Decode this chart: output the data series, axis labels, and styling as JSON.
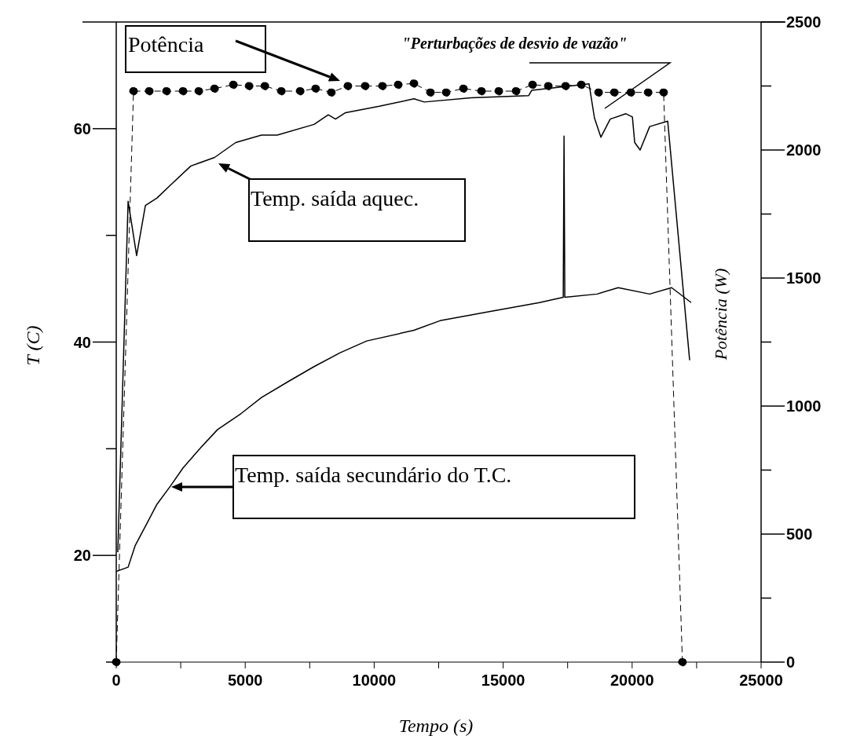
{
  "chart_data": {
    "type": "line",
    "xlabel": "Tempo (s)",
    "ylabel": "T (C)",
    "y2label": "Potência (W)",
    "xlim": [
      0,
      25000
    ],
    "xticks": [
      0,
      {
        "value": 2500,
        "label": null
      },
      5000,
      {
        "value": 7500,
        "label": null
      },
      10000,
      {
        "value": 12500,
        "label": null
      },
      15000,
      {
        "value": 17500,
        "label": null
      },
      20000,
      {
        "value": 22500,
        "label": null
      },
      25000
    ],
    "ylim": [
      10,
      70
    ],
    "yticks": [
      {
        "value": 10,
        "label": null
      },
      20,
      {
        "value": 30,
        "label": null
      },
      40,
      {
        "value": 50,
        "label": null
      },
      60
    ],
    "y2lim": [
      0,
      2500
    ],
    "y2ticks": [
      0,
      {
        "value": 250,
        "label": null
      },
      500,
      {
        "value": 750,
        "label": null
      },
      1000,
      {
        "value": 1250,
        "label": null
      },
      1500,
      {
        "value": 1750,
        "label": null
      },
      2000,
      {
        "value": 2250,
        "label": null
      },
      2500
    ],
    "annotations": [
      "Potência",
      "Temp. saída aquec.",
      "Temp. saída secundário do T.C.",
      "\"Perturbações de desvio de vazão\""
    ],
    "series": [
      {
        "color": "#000000",
        "marker": "none",
        "line_style": "solid",
        "x": [
          60,
          460,
          790,
          1130,
          1580,
          2100,
          2890,
          3810,
          4630,
          5630,
          6240,
          7670,
          8220,
          8500,
          8890,
          10200,
          11540,
          11940,
          13760,
          15990,
          16110,
          18330,
          18540,
          18790,
          19150,
          19760,
          20010,
          20100,
          20310,
          20680,
          21380,
          22230
        ],
        "values": [
          20.3,
          53.2,
          48.1,
          52.8,
          53.5,
          54.7,
          56.5,
          57.3,
          58.7,
          59.4,
          59.4,
          60.4,
          61.3,
          60.9,
          61.5,
          62.1,
          62.8,
          62.5,
          62.9,
          63.1,
          63.6,
          64.2,
          61.0,
          59.2,
          60.9,
          61.4,
          61.1,
          58.7,
          58.0,
          60.2,
          60.7,
          38.3
        ]
      },
      {
        "color": "#000000",
        "marker": "none",
        "line_style": "solid",
        "x": [
          0,
          460,
          730,
          1190,
          1580,
          2100,
          2590,
          3200,
          3930,
          4840,
          5630,
          6670,
          7670,
          8680,
          9710,
          11540,
          12550,
          14590,
          16410,
          17330,
          17360,
          17390,
          18640,
          19460,
          20680,
          21530,
          22290
        ],
        "values": [
          18.5,
          18.9,
          20.9,
          23.0,
          24.8,
          26.5,
          28.2,
          29.9,
          31.8,
          33.3,
          34.8,
          36.3,
          37.7,
          39.0,
          40.1,
          41.1,
          42.0,
          42.9,
          43.7,
          44.2,
          59.3,
          44.2,
          44.5,
          45.1,
          44.5,
          45.1,
          43.7
        ]
      },
      {
        "color": "#000000",
        "axis": "y2",
        "marker": "circle",
        "line_style": "dashed",
        "x": [
          0,
          670,
          1280,
          1950,
          2590,
          3200,
          3810,
          4540,
          5150,
          5760,
          6400,
          7130,
          7730,
          8340,
          8980,
          9650,
          10320,
          10930,
          11540,
          12180,
          12790,
          13460,
          14160,
          14830,
          15500,
          16140,
          16750,
          17420,
          18030,
          18700,
          19310,
          19950,
          20620,
          21220,
          21950
        ],
        "values": [
          0,
          2230,
          2230,
          2230,
          2230,
          2230,
          2240,
          2255,
          2250,
          2250,
          2230,
          2230,
          2240,
          2225,
          2250,
          2250,
          2250,
          2255,
          2260,
          2225,
          2225,
          2240,
          2230,
          2230,
          2230,
          2255,
          2250,
          2250,
          2255,
          2225,
          2225,
          2225,
          2225,
          2225,
          0
        ]
      }
    ]
  }
}
